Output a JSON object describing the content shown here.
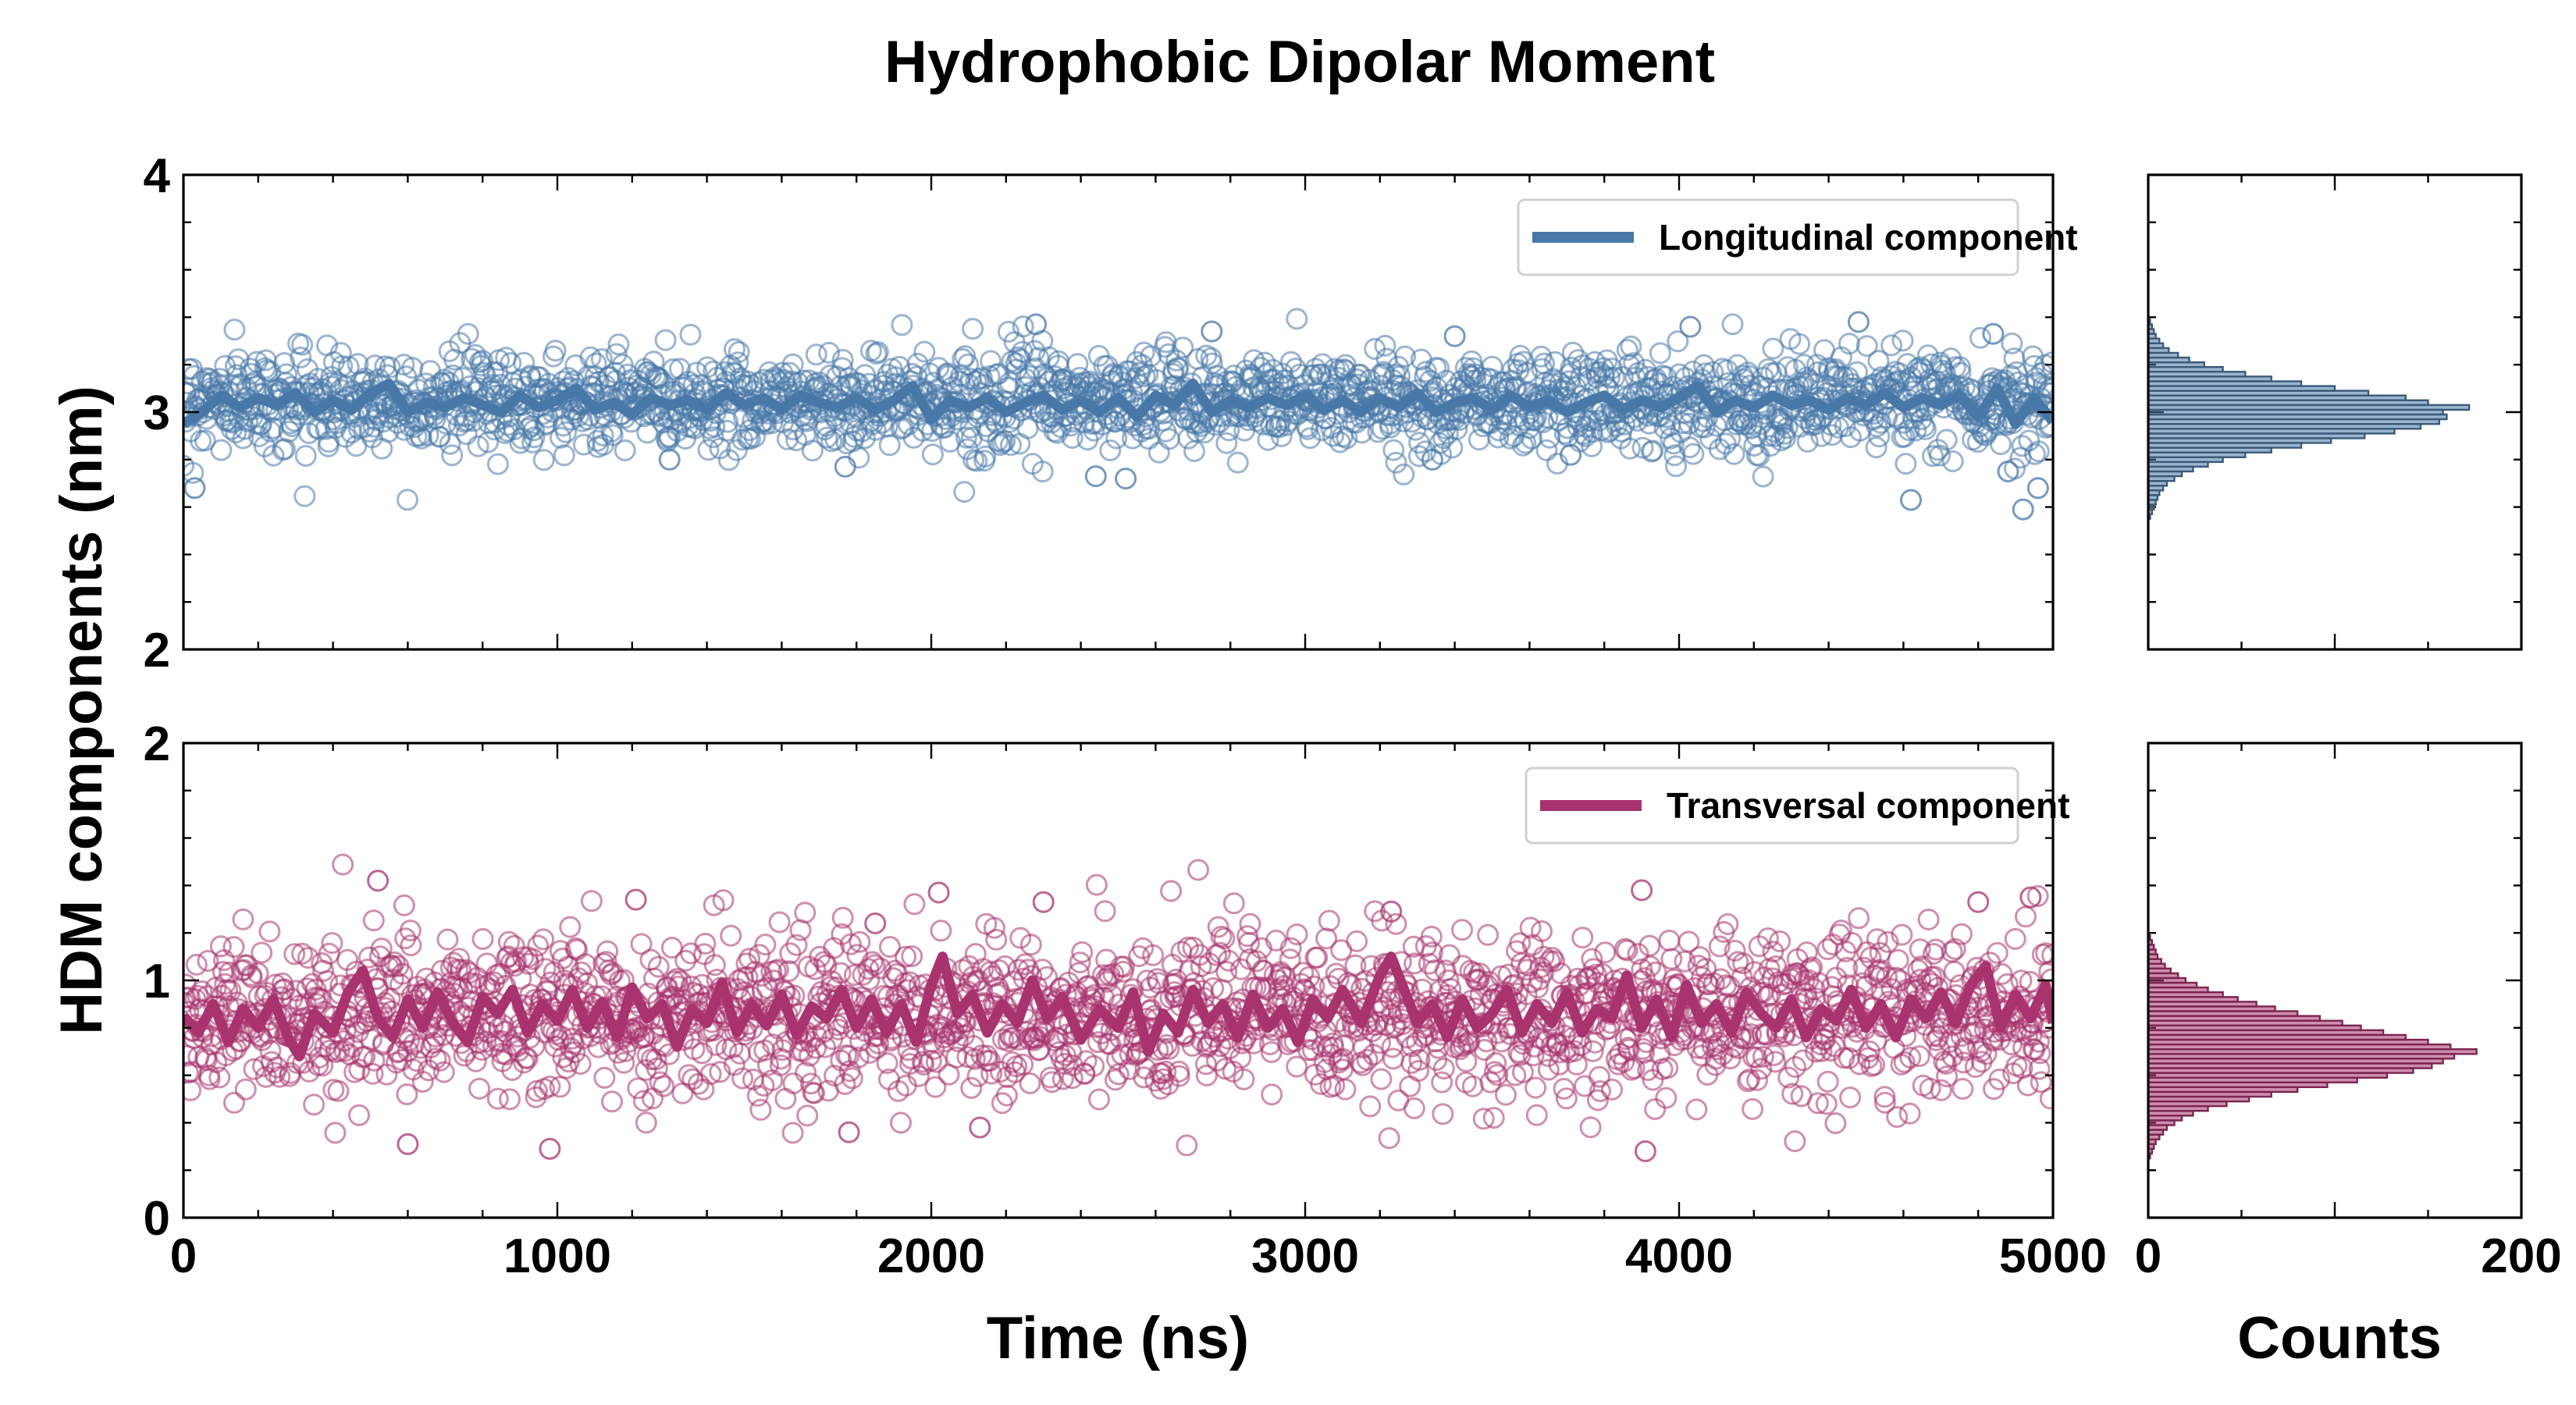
{
  "chart_data": {
    "type": "scatter",
    "title": "Hydrophobic Dipolar Moment",
    "ylabel": "HDM components (nm)",
    "xlabel": "Time (ns)",
    "hist_xlabel": "Counts",
    "xlim": [
      0,
      5000
    ],
    "xticks": [
      "0",
      "1000",
      "2000",
      "3000",
      "4000",
      "5000"
    ],
    "hist_xlim": [
      0,
      200
    ],
    "hist_xticks": [
      "0",
      "200"
    ],
    "panels": [
      {
        "name": "longitudinal",
        "legend": "Longitudinal component",
        "color": "#4878a8",
        "hist_color": "#3a5a78",
        "ylim": [
          2,
          4
        ],
        "yticks": [
          "2",
          "3",
          "4"
        ],
        "mean": 3.05,
        "spread": 0.1,
        "n_points": 2000,
        "outliers": [
          [
            30,
            2.68
          ],
          [
            1300,
            2.8
          ],
          [
            1770,
            2.77
          ],
          [
            2280,
            3.37
          ],
          [
            2440,
            2.73
          ],
          [
            2520,
            2.72
          ],
          [
            2750,
            3.34
          ],
          [
            3340,
            2.8
          ],
          [
            3400,
            3.32
          ],
          [
            3710,
            2.82
          ],
          [
            4030,
            3.36
          ],
          [
            4480,
            3.38
          ],
          [
            4620,
            2.63
          ],
          [
            4840,
            3.33
          ],
          [
            4880,
            2.75
          ],
          [
            4920,
            2.59
          ],
          [
            4960,
            2.68
          ]
        ],
        "smoothed_line": [
          [
            0,
            2.95
          ],
          [
            50,
            3.0
          ],
          [
            100,
            3.07
          ],
          [
            150,
            3.02
          ],
          [
            200,
            3.06
          ],
          [
            250,
            3.03
          ],
          [
            300,
            3.08
          ],
          [
            350,
            3.0
          ],
          [
            400,
            3.05
          ],
          [
            450,
            3.01
          ],
          [
            500,
            3.08
          ],
          [
            550,
            3.12
          ],
          [
            600,
            3.0
          ],
          [
            650,
            3.04
          ],
          [
            700,
            3.02
          ],
          [
            750,
            3.06
          ],
          [
            800,
            3.03
          ],
          [
            850,
            3.0
          ],
          [
            900,
            3.07
          ],
          [
            950,
            3.02
          ],
          [
            1000,
            3.05
          ],
          [
            1050,
            3.1
          ],
          [
            1100,
            3.01
          ],
          [
            1150,
            3.04
          ],
          [
            1200,
            2.99
          ],
          [
            1250,
            3.06
          ],
          [
            1300,
            3.03
          ],
          [
            1350,
            3.05
          ],
          [
            1400,
            3.01
          ],
          [
            1450,
            3.08
          ],
          [
            1500,
            3.03
          ],
          [
            1550,
            3.06
          ],
          [
            1600,
            3.01
          ],
          [
            1650,
            3.07
          ],
          [
            1700,
            3.04
          ],
          [
            1750,
            3.02
          ],
          [
            1800,
            3.06
          ],
          [
            1850,
            3.01
          ],
          [
            1900,
            3.05
          ],
          [
            1950,
            3.11
          ],
          [
            2000,
            2.97
          ],
          [
            2050,
            3.05
          ],
          [
            2100,
            3.02
          ],
          [
            2150,
            3.06
          ],
          [
            2200,
            3.0
          ],
          [
            2250,
            3.04
          ],
          [
            2300,
            3.07
          ],
          [
            2350,
            3.01
          ],
          [
            2400,
            3.05
          ],
          [
            2450,
            3.0
          ],
          [
            2500,
            3.06
          ],
          [
            2550,
            2.98
          ],
          [
            2600,
            3.07
          ],
          [
            2650,
            3.03
          ],
          [
            2700,
            3.12
          ],
          [
            2750,
            3.0
          ],
          [
            2800,
            3.05
          ],
          [
            2850,
            3.02
          ],
          [
            2900,
            3.06
          ],
          [
            2950,
            3.03
          ],
          [
            3000,
            3.07
          ],
          [
            3050,
            3.01
          ],
          [
            3100,
            3.05
          ],
          [
            3150,
            3.0
          ],
          [
            3200,
            3.06
          ],
          [
            3250,
            3.02
          ],
          [
            3300,
            3.08
          ],
          [
            3350,
            3.0
          ],
          [
            3400,
            3.04
          ],
          [
            3450,
            3.06
          ],
          [
            3500,
            3.01
          ],
          [
            3550,
            3.07
          ],
          [
            3600,
            3.02
          ],
          [
            3650,
            3.05
          ],
          [
            3700,
            3.0
          ],
          [
            3750,
            3.04
          ],
          [
            3800,
            3.07
          ],
          [
            3850,
            3.01
          ],
          [
            3900,
            3.05
          ],
          [
            3950,
            3.02
          ],
          [
            4000,
            3.06
          ],
          [
            4050,
            3.11
          ],
          [
            4100,
            3.0
          ],
          [
            4150,
            3.05
          ],
          [
            4200,
            3.02
          ],
          [
            4250,
            3.07
          ],
          [
            4300,
            3.03
          ],
          [
            4350,
            3.05
          ],
          [
            4400,
            3.01
          ],
          [
            4450,
            3.06
          ],
          [
            4500,
            3.03
          ],
          [
            4550,
            3.08
          ],
          [
            4600,
            3.02
          ],
          [
            4650,
            3.06
          ],
          [
            4700,
            3.03
          ],
          [
            4750,
            3.07
          ],
          [
            4800,
            2.98
          ],
          [
            4850,
            3.1
          ],
          [
            4900,
            2.95
          ],
          [
            4950,
            3.06
          ],
          [
            5000,
            2.96
          ]
        ],
        "histogram": {
          "bin_start": 2.55,
          "bin_width": 0.02,
          "counts": [
            1,
            2,
            3,
            4,
            5,
            6,
            8,
            10,
            14,
            18,
            24,
            32,
            40,
            52,
            66,
            82,
            98,
            116,
            132,
            146,
            156,
            160,
            158,
            172,
            150,
            138,
            118,
            100,
            82,
            66,
            52,
            40,
            30,
            22,
            16,
            11,
            8,
            6,
            4,
            3,
            2,
            1
          ]
        }
      },
      {
        "name": "transversal",
        "legend": "Transversal component",
        "color": "#a8336e",
        "hist_color": "#7a2550",
        "ylim": [
          0,
          2
        ],
        "yticks": [
          "0",
          "1",
          "2"
        ],
        "mean": 0.85,
        "spread": 0.17,
        "n_points": 2000,
        "outliers": [
          [
            520,
            1.42
          ],
          [
            2020,
            1.37
          ],
          [
            1210,
            1.34
          ],
          [
            3900,
            1.38
          ],
          [
            980,
            0.29
          ],
          [
            3910,
            0.28
          ],
          [
            600,
            0.31
          ],
          [
            1780,
            0.36
          ],
          [
            2130,
            0.38
          ],
          [
            4800,
            1.33
          ],
          [
            4940,
            1.35
          ],
          [
            3230,
            1.29
          ],
          [
            2300,
            1.33
          ],
          [
            1850,
            1.24
          ]
        ],
        "smoothed_line": [
          [
            0,
            0.85
          ],
          [
            40,
            0.78
          ],
          [
            80,
            0.9
          ],
          [
            120,
            0.74
          ],
          [
            160,
            0.88
          ],
          [
            200,
            0.8
          ],
          [
            240,
            0.92
          ],
          [
            280,
            0.76
          ],
          [
            310,
            0.68
          ],
          [
            350,
            0.86
          ],
          [
            400,
            0.78
          ],
          [
            440,
            0.95
          ],
          [
            480,
            1.04
          ],
          [
            520,
            0.84
          ],
          [
            560,
            0.76
          ],
          [
            600,
            0.92
          ],
          [
            640,
            0.8
          ],
          [
            680,
            0.95
          ],
          [
            720,
            0.82
          ],
          [
            760,
            0.74
          ],
          [
            800,
            0.93
          ],
          [
            840,
            0.86
          ],
          [
            880,
            0.96
          ],
          [
            920,
            0.78
          ],
          [
            960,
            0.9
          ],
          [
            1000,
            0.83
          ],
          [
            1040,
            0.96
          ],
          [
            1080,
            0.8
          ],
          [
            1120,
            0.91
          ],
          [
            1160,
            0.76
          ],
          [
            1200,
            0.97
          ],
          [
            1240,
            0.84
          ],
          [
            1280,
            0.9
          ],
          [
            1320,
            0.72
          ],
          [
            1360,
            0.88
          ],
          [
            1400,
            0.82
          ],
          [
            1440,
            0.99
          ],
          [
            1480,
            0.78
          ],
          [
            1520,
            0.9
          ],
          [
            1560,
            0.81
          ],
          [
            1600,
            0.94
          ],
          [
            1640,
            0.77
          ],
          [
            1680,
            0.89
          ],
          [
            1720,
            0.84
          ],
          [
            1760,
            0.96
          ],
          [
            1800,
            0.8
          ],
          [
            1840,
            0.92
          ],
          [
            1880,
            0.78
          ],
          [
            1920,
            0.9
          ],
          [
            1960,
            0.74
          ],
          [
            2000,
            0.98
          ],
          [
            2030,
            1.1
          ],
          [
            2070,
            0.86
          ],
          [
            2110,
            0.94
          ],
          [
            2150,
            0.78
          ],
          [
            2190,
            0.9
          ],
          [
            2230,
            0.82
          ],
          [
            2270,
            1.0
          ],
          [
            2310,
            0.84
          ],
          [
            2350,
            0.93
          ],
          [
            2400,
            0.75
          ],
          [
            2450,
            0.88
          ],
          [
            2500,
            0.8
          ],
          [
            2540,
            0.95
          ],
          [
            2580,
            0.7
          ],
          [
            2620,
            0.86
          ],
          [
            2660,
            0.78
          ],
          [
            2700,
            0.96
          ],
          [
            2740,
            0.82
          ],
          [
            2780,
            0.9
          ],
          [
            2820,
            0.76
          ],
          [
            2860,
            0.94
          ],
          [
            2900,
            0.8
          ],
          [
            2940,
            0.88
          ],
          [
            2980,
            0.74
          ],
          [
            3020,
            0.92
          ],
          [
            3060,
            0.84
          ],
          [
            3100,
            0.96
          ],
          [
            3150,
            0.82
          ],
          [
            3200,
            1.02
          ],
          [
            3230,
            1.1
          ],
          [
            3260,
            0.98
          ],
          [
            3300,
            0.82
          ],
          [
            3340,
            0.9
          ],
          [
            3380,
            0.76
          ],
          [
            3420,
            0.92
          ],
          [
            3460,
            0.8
          ],
          [
            3500,
            0.86
          ],
          [
            3540,
            0.96
          ],
          [
            3580,
            0.78
          ],
          [
            3620,
            0.9
          ],
          [
            3660,
            0.82
          ],
          [
            3700,
            0.95
          ],
          [
            3740,
            0.78
          ],
          [
            3780,
            0.88
          ],
          [
            3820,
            0.84
          ],
          [
            3860,
            1.02
          ],
          [
            3900,
            0.8
          ],
          [
            3940,
            0.92
          ],
          [
            3980,
            0.76
          ],
          [
            4020,
            0.98
          ],
          [
            4060,
            0.82
          ],
          [
            4100,
            0.9
          ],
          [
            4140,
            0.78
          ],
          [
            4180,
            0.95
          ],
          [
            4220,
            0.86
          ],
          [
            4260,
            0.8
          ],
          [
            4300,
            0.92
          ],
          [
            4340,
            0.76
          ],
          [
            4380,
            0.88
          ],
          [
            4420,
            0.83
          ],
          [
            4460,
            0.96
          ],
          [
            4500,
            0.8
          ],
          [
            4540,
            0.9
          ],
          [
            4580,
            0.76
          ],
          [
            4620,
            0.92
          ],
          [
            4660,
            0.84
          ],
          [
            4700,
            0.95
          ],
          [
            4740,
            0.82
          ],
          [
            4780,
            0.98
          ],
          [
            4820,
            1.06
          ],
          [
            4860,
            0.8
          ],
          [
            4900,
            0.94
          ],
          [
            4940,
            0.84
          ],
          [
            4980,
            0.98
          ],
          [
            5000,
            0.82
          ]
        ],
        "histogram": {
          "bin_start": 0.25,
          "bin_width": 0.02,
          "counts": [
            1,
            2,
            3,
            4,
            6,
            8,
            10,
            14,
            18,
            24,
            32,
            42,
            54,
            66,
            80,
            96,
            112,
            128,
            142,
            152,
            158,
            164,
            176,
            162,
            150,
            138,
            126,
            114,
            104,
            92,
            80,
            68,
            58,
            48,
            40,
            32,
            26,
            20,
            16,
            12,
            9,
            7,
            5,
            4,
            3,
            2,
            1
          ]
        }
      }
    ]
  }
}
